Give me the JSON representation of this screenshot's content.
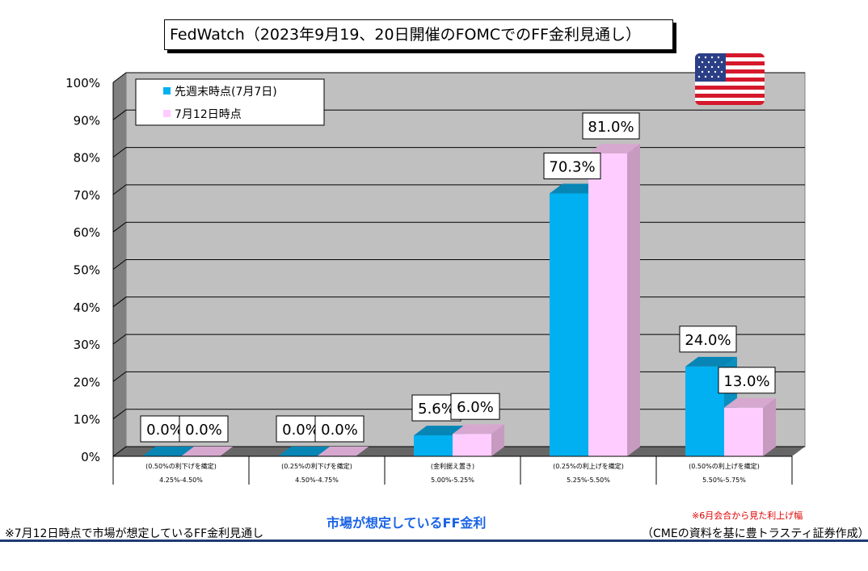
{
  "title": "FedWatch（2023年9月19、20日開催のFOMCでのFF金利見通し）",
  "chart_data": {
    "type": "bar",
    "categories": [
      "4.25%-4.50%",
      "4.50%-4.75%",
      "5.00%-5.25%",
      "5.25%-5.50%",
      "5.50%-5.75%"
    ],
    "category_notes": [
      "(0.50%の利下げを織定)",
      "(0.25%の利下げを織定)",
      "(金利据え置き)",
      "(0.25%の利上げを織定)",
      "(0.50%の利上げを織定)"
    ],
    "series": [
      {
        "name": "先週末時点(7月7日)",
        "values": [
          0.0,
          0.0,
          5.6,
          70.3,
          24.0
        ],
        "color": "#00b0f0"
      },
      {
        "name": "7月12日時点",
        "values": [
          0.0,
          0.0,
          6.0,
          81.0,
          13.0
        ],
        "color": "#ffccff"
      }
    ],
    "data_labels": [
      [
        "0.0%",
        "0.0%",
        "5.6%",
        "70.3%",
        "24.0%"
      ],
      [
        "0.0%",
        "0.0%",
        "6.0%",
        "81.0%",
        "13.0%"
      ]
    ],
    "yticks": [
      "0%",
      "10%",
      "20%",
      "30%",
      "40%",
      "50%",
      "60%",
      "70%",
      "80%",
      "90%",
      "100%"
    ],
    "ylim": [
      0,
      100
    ],
    "grid": true,
    "legend_position": "top-left",
    "xlabel": "市場が想定しているFF金利"
  },
  "footer": {
    "left_note": "※7月12日時点で市場が想定しているFF金利見通し",
    "xlabel": "市場が想定しているFF金利",
    "red_note": "※6月会合から見た利上げ幅",
    "source": "（CMEの資料を基に豊トラスティ証券作成）"
  },
  "flag_icon": "us-flag-icon"
}
